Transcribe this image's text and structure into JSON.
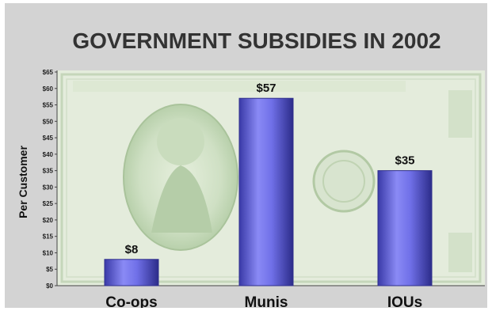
{
  "chart_data": {
    "type": "bar",
    "title": "GOVERNMENT SUBSIDIES IN 2002",
    "xlabel": "",
    "ylabel": "Per Customer",
    "categories": [
      "Co-ops",
      "Munis",
      "IOUs"
    ],
    "values": [
      8,
      57,
      35
    ],
    "data_labels": [
      "$8",
      "$57",
      "$35"
    ],
    "ylim": [
      0,
      65
    ],
    "y_ticks": [
      "$0",
      "$5",
      "$10",
      "$15",
      "$20",
      "$25",
      "$30",
      "$35",
      "$40",
      "$45",
      "$50",
      "$55",
      "$60",
      "$65"
    ],
    "grid": false,
    "legend": "none",
    "colors": {
      "bar": "#6e6ee6",
      "bar_dark": "#2f2f8c",
      "background": "#d3d3d3",
      "plot_bg": "#e7eee0"
    }
  }
}
